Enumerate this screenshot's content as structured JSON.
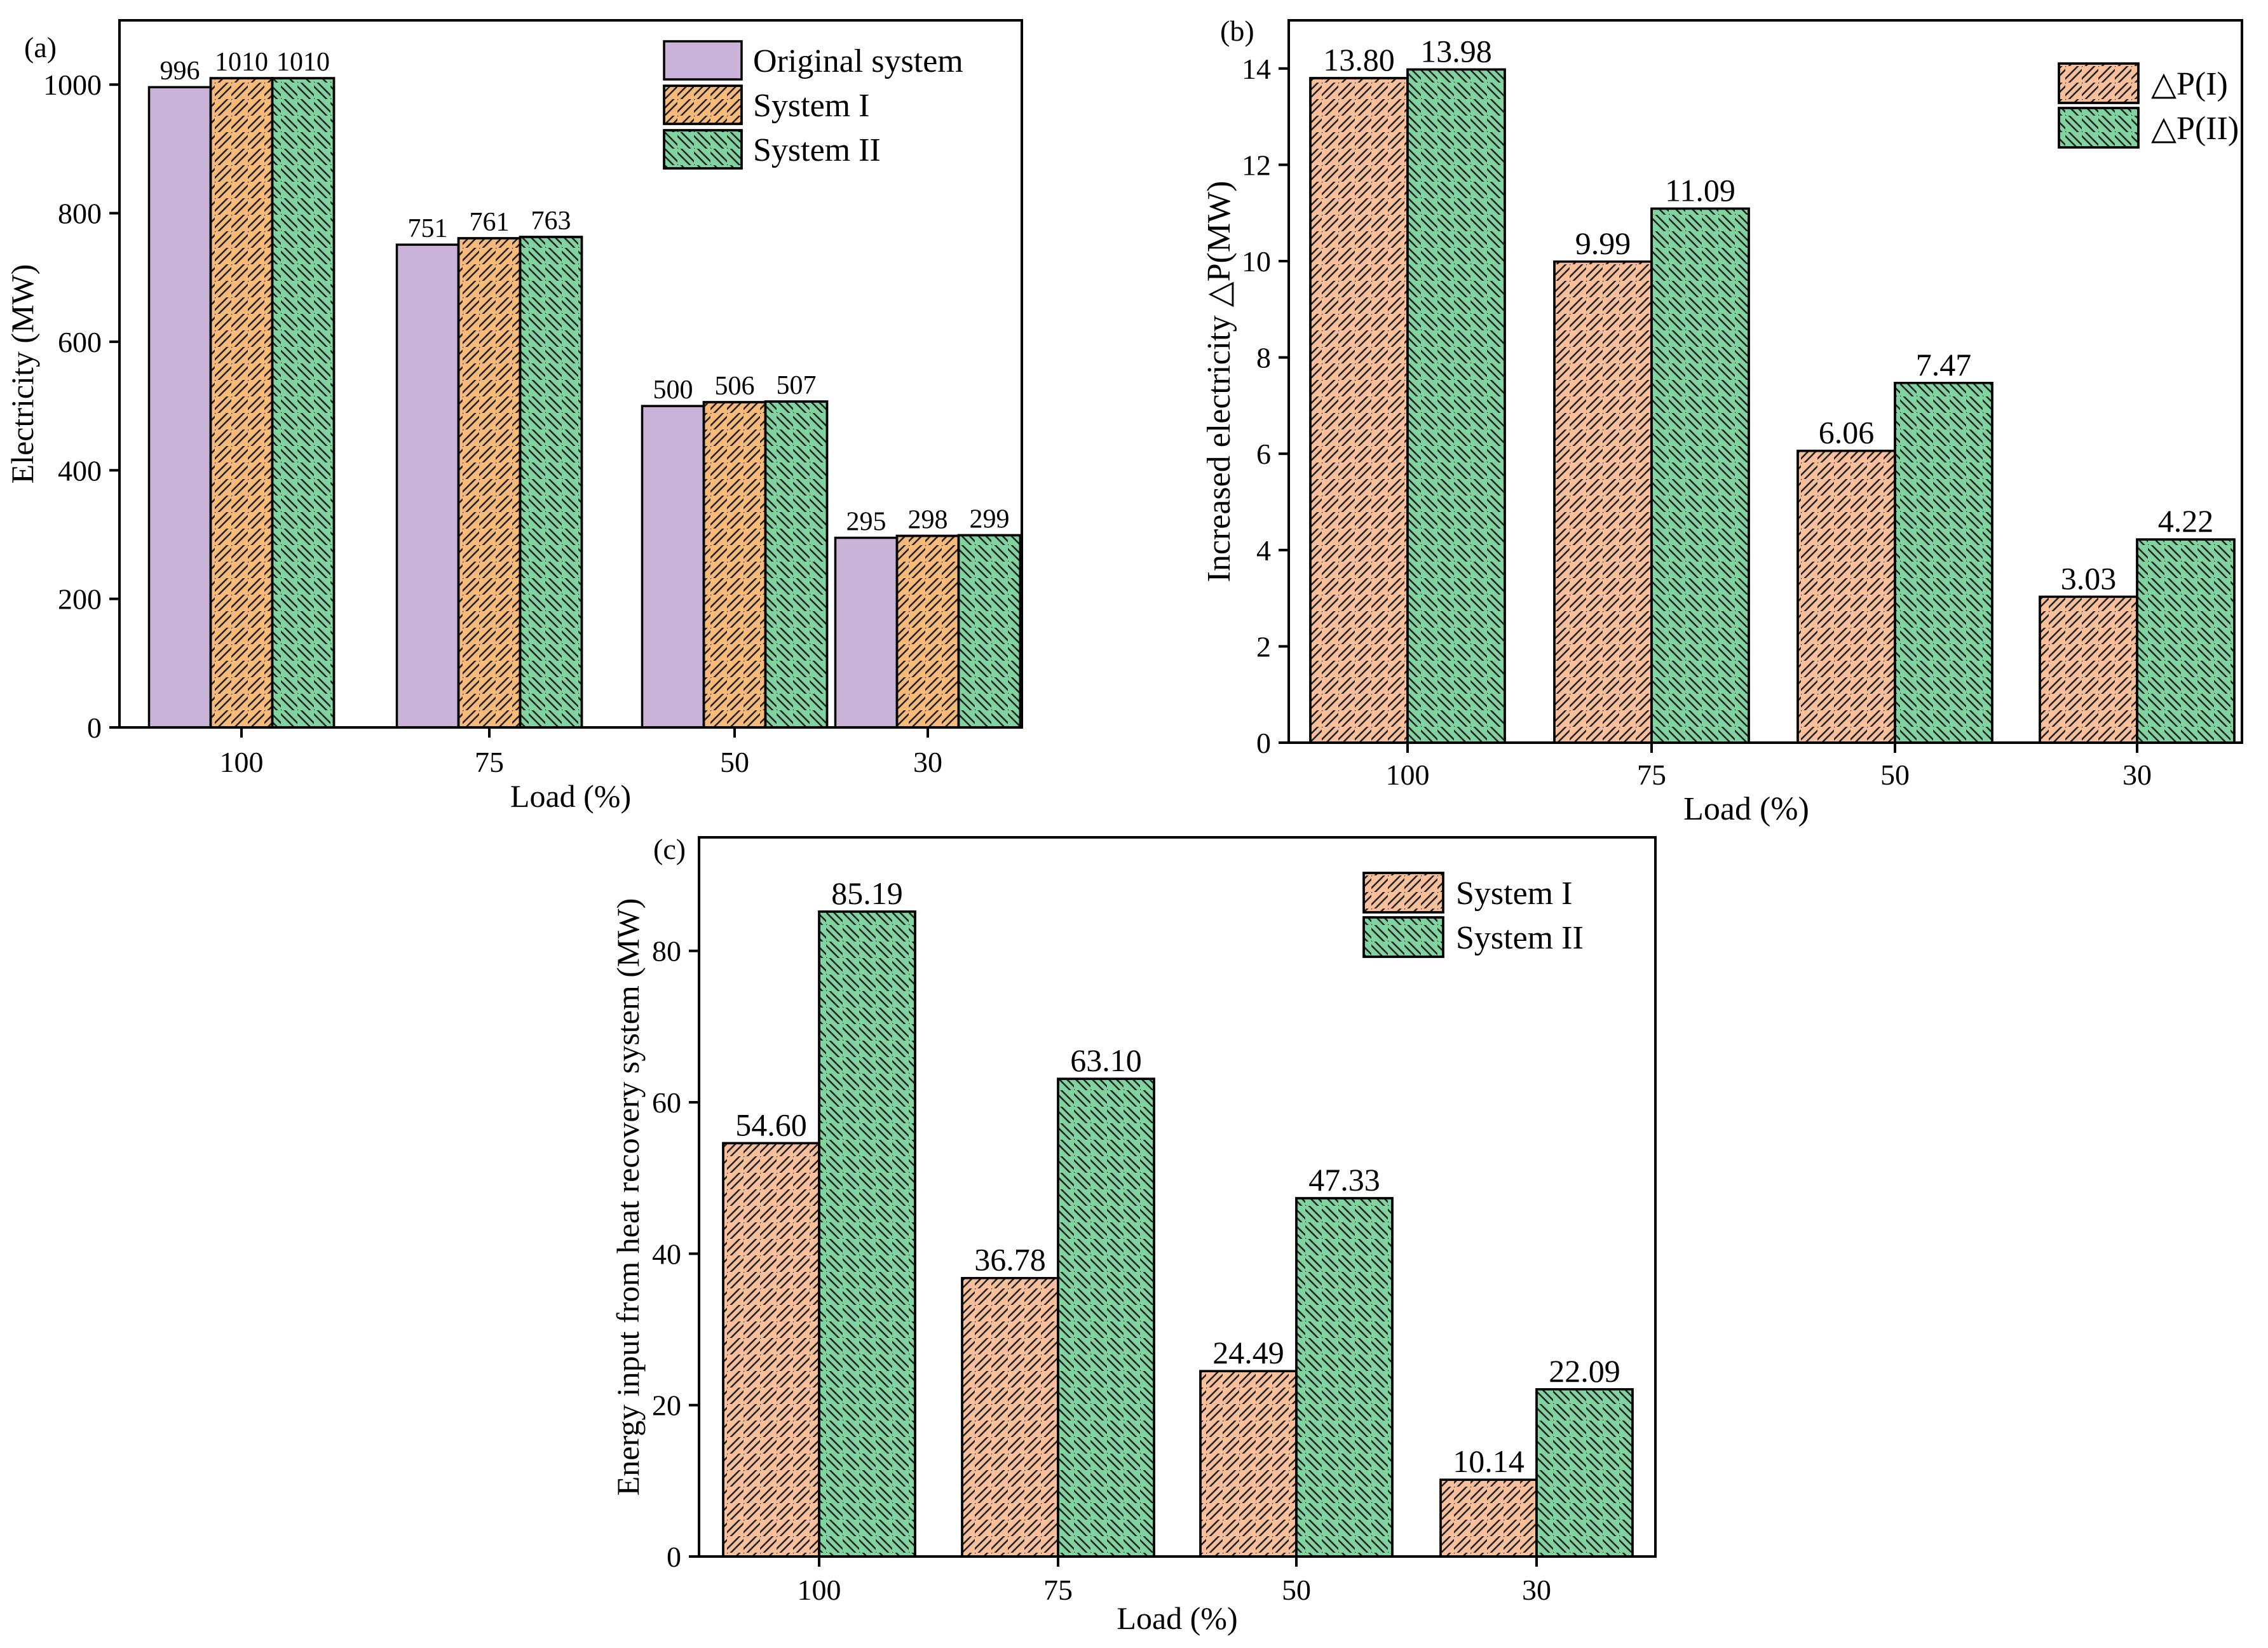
{
  "colors": {
    "original": "#c9b3d9",
    "system1": "#f7ba79",
    "system2": "#7fd4a0",
    "delta1": "#f9bf9a",
    "delta2": "#7fd4a0",
    "hatch": "#222222"
  },
  "chart_data": [
    {
      "panel_label": "(a)",
      "type": "bar",
      "categories": [
        "100",
        "75",
        "50",
        "30"
      ],
      "xlabel": "Load (%)",
      "ylabel": "Electricity (MW)",
      "ylim": [
        0,
        1100
      ],
      "yticks": [
        "0",
        "200",
        "400",
        "600",
        "800",
        "1000"
      ],
      "ytick_values": [
        0,
        200,
        400,
        600,
        800,
        1000
      ],
      "legend_position": "top-right",
      "series": [
        {
          "name": "Original system",
          "values": [
            996,
            751,
            500,
            295
          ],
          "labels": [
            "996",
            "751",
            "500",
            "295"
          ],
          "color_key": "original",
          "hatch": "none"
        },
        {
          "name": "System I",
          "values": [
            1010,
            761,
            506,
            298
          ],
          "labels": [
            "1010",
            "761",
            "506",
            "298"
          ],
          "color_key": "system1",
          "hatch": "forward"
        },
        {
          "name": "System II",
          "values": [
            1010,
            763,
            507,
            299
          ],
          "labels": [
            "1010",
            "763",
            "507",
            "299"
          ],
          "color_key": "system2",
          "hatch": "backward"
        }
      ]
    },
    {
      "panel_label": "(b)",
      "type": "bar",
      "categories": [
        "100",
        "75",
        "50",
        "30"
      ],
      "xlabel": "Load (%)",
      "ylabel": "Increased electricity  △P(MW)",
      "ylim": [
        0,
        15
      ],
      "yticks": [
        "0",
        "2",
        "4",
        "6",
        "8",
        "10",
        "12",
        "14"
      ],
      "ytick_values": [
        0,
        2,
        4,
        6,
        8,
        10,
        12,
        14
      ],
      "legend_position": "top-right",
      "series": [
        {
          "name": "△P(I)",
          "values": [
            13.8,
            9.99,
            6.06,
            3.03
          ],
          "labels": [
            "13.80",
            "9.99",
            "6.06",
            "3.03"
          ],
          "color_key": "delta1",
          "hatch": "forward"
        },
        {
          "name": "△P(II)",
          "values": [
            13.98,
            11.09,
            7.47,
            4.22
          ],
          "labels": [
            "13.98",
            "11.09",
            "7.47",
            "4.22"
          ],
          "color_key": "delta2",
          "hatch": "backward"
        }
      ]
    },
    {
      "panel_label": "(c)",
      "type": "bar",
      "categories": [
        "100",
        "75",
        "50",
        "30"
      ],
      "xlabel": "Load (%)",
      "ylabel": "Energy input from heat recovery system (MW)",
      "ylim": [
        0,
        95
      ],
      "yticks": [
        "0",
        "20",
        "40",
        "60",
        "80"
      ],
      "ytick_values": [
        0,
        20,
        40,
        60,
        80
      ],
      "legend_position": "top-right",
      "series": [
        {
          "name": "System I",
          "values": [
            54.6,
            36.78,
            24.49,
            10.14
          ],
          "labels": [
            "54.60",
            "36.78",
            "24.49",
            "10.14"
          ],
          "color_key": "delta1",
          "hatch": "forward"
        },
        {
          "name": "System II",
          "values": [
            85.19,
            63.1,
            47.33,
            22.09
          ],
          "labels": [
            "85.19",
            "63.10",
            "47.33",
            "22.09"
          ],
          "color_key": "delta2",
          "hatch": "backward"
        }
      ]
    }
  ]
}
